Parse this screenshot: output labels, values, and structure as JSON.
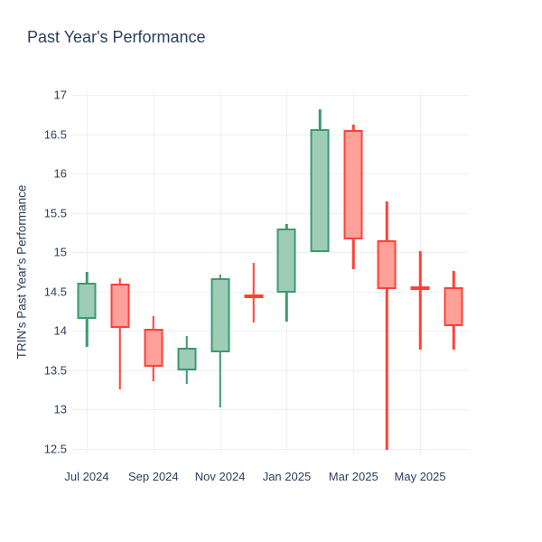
{
  "title": "Past Year's Performance",
  "colors": {
    "text": "#2a3f5f",
    "grid": "#ebf0f8",
    "background": "#ffffff",
    "increasing_line": "#3d9970",
    "increasing_fill": "#9eccb7",
    "decreasing_line": "#ff4136",
    "decreasing_fill": "#ffa09a"
  },
  "chart_data": {
    "type": "candlestick",
    "title": "Past Year's Performance",
    "xlabel": "",
    "ylabel": "TRIN's Past Year's Performance",
    "grid": true,
    "legend_position": "none",
    "ylim": [
      12.43,
      17.06
    ],
    "y_ticks": [
      {
        "value": 17,
        "label": "17"
      },
      {
        "value": 16.5,
        "label": "16.5"
      },
      {
        "value": 16,
        "label": "16"
      },
      {
        "value": 15.5,
        "label": "15.5"
      },
      {
        "value": 15,
        "label": "15"
      },
      {
        "value": 14.5,
        "label": "14.5"
      },
      {
        "value": 14,
        "label": "14"
      },
      {
        "value": 13.5,
        "label": "13.5"
      },
      {
        "value": 13,
        "label": "13"
      },
      {
        "value": 12.5,
        "label": "12.5"
      }
    ],
    "x_ticks": [
      {
        "index": 0,
        "label": "Jul 2024"
      },
      {
        "index": 2,
        "label": "Sep 2024"
      },
      {
        "index": 4,
        "label": "Nov 2024"
      },
      {
        "index": 6,
        "label": "Jan 2025"
      },
      {
        "index": 8,
        "label": "Mar 2025"
      },
      {
        "index": 10,
        "label": "May 2025"
      }
    ],
    "candles": [
      {
        "month": "Jul 2024",
        "open": 14.15,
        "high": 14.75,
        "low": 13.8,
        "close": 14.61
      },
      {
        "month": "Aug 2024",
        "open": 14.6,
        "high": 14.67,
        "low": 13.26,
        "close": 14.04
      },
      {
        "month": "Sep 2024",
        "open": 14.03,
        "high": 14.19,
        "low": 13.36,
        "close": 13.54
      },
      {
        "month": "Oct 2024",
        "open": 13.5,
        "high": 13.93,
        "low": 13.33,
        "close": 13.78
      },
      {
        "month": "Nov 2024",
        "open": 13.73,
        "high": 14.72,
        "low": 13.03,
        "close": 14.67
      },
      {
        "month": "Dec 2024",
        "open": 14.46,
        "high": 14.87,
        "low": 14.11,
        "close": 14.43
      },
      {
        "month": "Jan 2025",
        "open": 14.49,
        "high": 15.36,
        "low": 14.12,
        "close": 15.3
      },
      {
        "month": "Feb 2025",
        "open": 15.0,
        "high": 16.82,
        "low": 15.0,
        "close": 16.57
      },
      {
        "month": "Mar 2025",
        "open": 16.55,
        "high": 16.62,
        "low": 14.79,
        "close": 15.16
      },
      {
        "month": "Apr 2025",
        "open": 15.15,
        "high": 15.65,
        "low": 12.49,
        "close": 14.53
      },
      {
        "month": "May 2025",
        "open": 14.57,
        "high": 15.02,
        "low": 13.76,
        "close": 14.54
      },
      {
        "month": "Jun 2025",
        "open": 14.56,
        "high": 14.76,
        "low": 13.76,
        "close": 14.06
      }
    ]
  }
}
